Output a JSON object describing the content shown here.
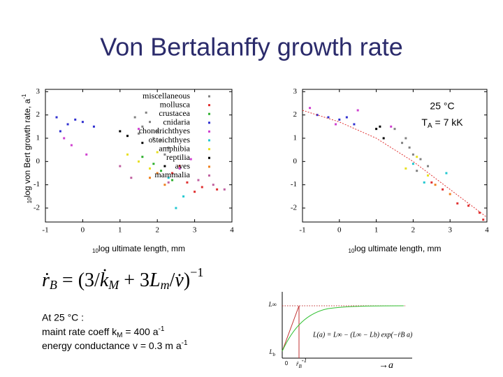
{
  "title": "Von Bertalanffy growth rate",
  "formula": [
    "ṙ",
    "B",
    " = (3/",
    "k̇",
    "M",
    " + 3",
    "L",
    "m",
    "/",
    "v̇",
    ")",
    "−1"
  ],
  "notes": {
    "line1": "At 25 °C :",
    "line2": [
      "maint rate coeff k",
      "M",
      " = 400 a",
      "-1"
    ],
    "line3": [
      "energy conductance v = 0.3 m a",
      "-1"
    ]
  },
  "inset": {
    "y_top": "L∞",
    "y_bottom": "L",
    "y_bottom_sub": "b",
    "origin": "0",
    "x_mark": "ṙ",
    "x_mark_sub": "B",
    "x_mark_sup": "-1",
    "x_arrow": "→a",
    "formula": "L(a) = L∞ − (L∞ − Lb) exp(−ṙB a)"
  },
  "chart_data": [
    {
      "type": "scatter",
      "ylabel": {
        "sub": "10",
        "text": "log von Bert growth rate, a",
        "sup": "-1"
      },
      "xlabel": {
        "sub": "10",
        "text": "log ultimate length, mm"
      },
      "xlim": [
        -1,
        4
      ],
      "xticks": [
        -1,
        0,
        1,
        2,
        3,
        4
      ],
      "ylim": [
        -2.6,
        3.1
      ],
      "yticks": [
        -2,
        -1,
        0,
        1,
        2,
        3
      ],
      "series": [
        {
          "name": "miscellaneous",
          "color": "#808080",
          "x": [
            1.4,
            1.6,
            1.8,
            2.0,
            2.1,
            2.3,
            1.7,
            1.9,
            2.2,
            1.5
          ],
          "values": [
            1.9,
            1.5,
            1.7,
            1.3,
            0.9,
            0.6,
            2.1,
            1.0,
            0.3,
            1.2
          ]
        },
        {
          "name": "mollusca",
          "color": "#e03030",
          "x": [
            2.4,
            2.8,
            3.2,
            3.6,
            2.6,
            3.0
          ],
          "values": [
            -0.5,
            -0.9,
            -1.1,
            -1.2,
            -0.2,
            -1.3
          ]
        },
        {
          "name": "crustacea",
          "color": "#30b030",
          "x": [
            1.6,
            1.9,
            2.1,
            2.4
          ],
          "values": [
            0.2,
            -0.1,
            -0.4,
            -0.8
          ]
        },
        {
          "name": "cnidaria",
          "color": "#3030d0",
          "x": [
            -0.7,
            -0.4,
            -0.2,
            0.0,
            0.3,
            -0.6
          ],
          "values": [
            1.9,
            1.6,
            1.8,
            1.7,
            1.5,
            1.3
          ]
        },
        {
          "name": "chondrichthyes",
          "color": "#d040d0",
          "x": [
            -0.5,
            -0.3,
            0.1,
            1.5,
            2.6,
            2.9
          ],
          "values": [
            1.0,
            0.7,
            0.3,
            1.4,
            -0.3,
            0.1
          ]
        },
        {
          "name": "osteichthyes",
          "color": "#20c8d0",
          "x": [
            2.5,
            2.7,
            2.3
          ],
          "values": [
            -2.0,
            -1.5,
            -0.7
          ]
        },
        {
          "name": "amphibia",
          "color": "#e8e020",
          "x": [
            1.2,
            1.5,
            1.8,
            2.0
          ],
          "values": [
            0.3,
            0.0,
            -0.3,
            0.4
          ]
        },
        {
          "name": "reptilia",
          "color": "#000000",
          "x": [
            1.0,
            1.2,
            1.6,
            2.2
          ],
          "values": [
            1.3,
            1.1,
            0.8,
            -0.2
          ]
        },
        {
          "name": "aves",
          "color": "#f08020",
          "x": [
            1.8,
            2.0,
            2.2
          ],
          "values": [
            -0.7,
            -0.5,
            -1.0
          ]
        },
        {
          "name": "mammalia",
          "color": "#c060a0",
          "x": [
            1.0,
            1.3,
            2.3,
            3.1,
            3.5,
            3.8
          ],
          "values": [
            -0.2,
            -0.7,
            -0.9,
            -0.8,
            -1.0,
            -1.2
          ]
        }
      ]
    },
    {
      "type": "scatter",
      "xlabel": {
        "sub": "10",
        "text": "log ultimate length, mm"
      },
      "annotation": {
        "line1": "25 °C",
        "line2": [
          "T",
          "A",
          " = 7 kK"
        ]
      },
      "xlim": [
        -1,
        4
      ],
      "xticks": [
        -1,
        0,
        1,
        2,
        3,
        4
      ],
      "ylim": [
        -2.6,
        3.1
      ],
      "yticks": [
        -2,
        -1,
        0,
        1,
        2,
        3
      ],
      "series": [
        {
          "color": "#808080",
          "x": [
            1.5,
            1.7,
            1.9,
            2.0,
            2.2,
            2.4,
            1.8,
            2.1
          ],
          "values": [
            1.4,
            0.8,
            0.6,
            0.3,
            0.1,
            -0.2,
            1.0,
            -0.4
          ]
        },
        {
          "color": "#e03030",
          "x": [
            2.8,
            3.2,
            3.5,
            3.8,
            2.5,
            3.9
          ],
          "values": [
            -1.2,
            -1.8,
            -1.9,
            -2.2,
            -0.9,
            -2.5
          ]
        },
        {
          "color": "#3030d0",
          "x": [
            -0.6,
            -0.3,
            0.0,
            0.2,
            0.4
          ],
          "values": [
            2.0,
            1.9,
            1.8,
            1.9,
            1.6
          ]
        },
        {
          "color": "#d040d0",
          "x": [
            -0.8,
            -0.1,
            0.5,
            1.4
          ],
          "values": [
            2.3,
            1.6,
            2.2,
            1.5
          ]
        },
        {
          "color": "#000000",
          "x": [
            1.0,
            1.1,
            1.2
          ],
          "values": [
            1.4,
            1.5,
            1.0
          ]
        },
        {
          "color": "#20c8d0",
          "x": [
            2.3,
            2.9,
            2.0
          ],
          "values": [
            -0.9,
            -0.5,
            -0.1
          ]
        },
        {
          "color": "#e8e020",
          "x": [
            1.8,
            2.1,
            2.4
          ],
          "values": [
            -0.3,
            0.2,
            -0.6
          ]
        },
        {
          "color": "#f08020",
          "x": [
            2.6,
            3.0
          ],
          "values": [
            -1.0,
            -1.4
          ]
        },
        {
          "color": "#e03030",
          "line": true,
          "x": [
            -1,
            0,
            1,
            2,
            3,
            3.5,
            4
          ],
          "values": [
            2.2,
            1.7,
            1.0,
            0.0,
            -1.2,
            -1.8,
            -2.4
          ]
        }
      ]
    }
  ]
}
